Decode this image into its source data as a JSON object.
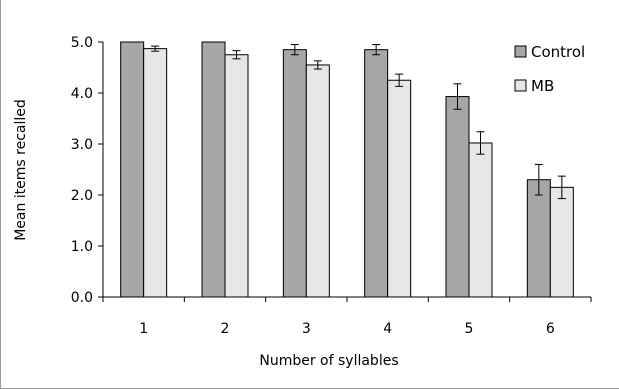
{
  "chart_data": {
    "type": "bar",
    "title": "",
    "xlabel": "Number of syllables",
    "ylabel": "Mean items recalled",
    "categories": [
      "1",
      "2",
      "3",
      "4",
      "5",
      "6"
    ],
    "ylim": [
      0,
      5
    ],
    "yticks": [
      "0.0",
      "1.0",
      "2.0",
      "3.0",
      "4.0",
      "5.0"
    ],
    "grid": false,
    "legend_position": "top-right",
    "series": [
      {
        "name": "Control",
        "color": "#a6a6a6",
        "values": [
          5.0,
          5.0,
          4.85,
          4.85,
          3.93,
          2.3
        ],
        "errors": [
          0,
          0,
          0.1,
          0.1,
          0.25,
          0.3
        ]
      },
      {
        "name": "MB",
        "color": "#e6e6e6",
        "values": [
          4.87,
          4.75,
          4.55,
          4.25,
          3.02,
          2.15
        ],
        "errors": [
          0.05,
          0.08,
          0.08,
          0.12,
          0.22,
          0.22
        ]
      }
    ]
  }
}
